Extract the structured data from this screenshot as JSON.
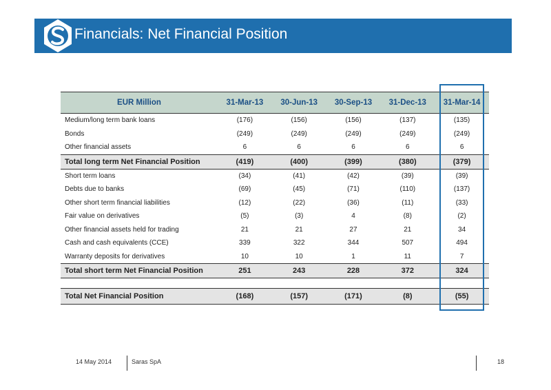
{
  "header": {
    "title": "Financials: Net Financial Position",
    "background_color": "#1f6fae",
    "logo_icon": "saras-logo-icon"
  },
  "table": {
    "columns": [
      "EUR Million",
      "31-Mar-13",
      "30-Jun-13",
      "30-Sep-13",
      "31-Dec-13",
      "31-Mar-14"
    ],
    "rows": [
      {
        "type": "item",
        "cells": [
          "Medium/long term bank loans",
          "(176)",
          "(156)",
          "(156)",
          "(137)",
          "(135)"
        ]
      },
      {
        "type": "item",
        "cells": [
          "Bonds",
          "(249)",
          "(249)",
          "(249)",
          "(249)",
          "(249)"
        ]
      },
      {
        "type": "item",
        "cells": [
          "Other financial assets",
          "6",
          "6",
          "6",
          "6",
          "6"
        ]
      },
      {
        "type": "total",
        "cells": [
          "Total long term Net Financial Position",
          "(419)",
          "(400)",
          "(399)",
          "(380)",
          "(379)"
        ]
      },
      {
        "type": "item",
        "cells": [
          "Short term loans",
          "(34)",
          "(41)",
          "(42)",
          "(39)",
          "(39)"
        ]
      },
      {
        "type": "item",
        "cells": [
          "Debts due to banks",
          "(69)",
          "(45)",
          "(71)",
          "(110)",
          "(137)"
        ]
      },
      {
        "type": "item",
        "cells": [
          "Other short term financial liabilities",
          "(12)",
          "(22)",
          "(36)",
          "(11)",
          "(33)"
        ]
      },
      {
        "type": "item",
        "cells": [
          "Fair value on derivatives",
          "(5)",
          "(3)",
          "4",
          "(8)",
          "(2)"
        ]
      },
      {
        "type": "item",
        "cells": [
          "Other financial assets held for trading",
          "21",
          "21",
          "27",
          "21",
          "34"
        ]
      },
      {
        "type": "item",
        "cells": [
          "Cash and cash equivalents (CCE)",
          "339",
          "322",
          "344",
          "507",
          "494"
        ]
      },
      {
        "type": "item",
        "cells": [
          "Warranty deposits for derivatives",
          "10",
          "10",
          "1",
          "11",
          "7"
        ]
      },
      {
        "type": "total",
        "cells": [
          "Total short term Net Financial Position",
          "251",
          "243",
          "228",
          "372",
          "324"
        ]
      },
      {
        "type": "spacer",
        "cells": []
      },
      {
        "type": "grand",
        "cells": [
          "Total Net Financial Position",
          "(168)",
          "(157)",
          "(171)",
          "(8)",
          "(55)"
        ]
      }
    ],
    "highlight_color": "#1f6fae"
  },
  "footer": {
    "date": "14 May 2014",
    "company": "Saras SpA",
    "page": "18"
  }
}
